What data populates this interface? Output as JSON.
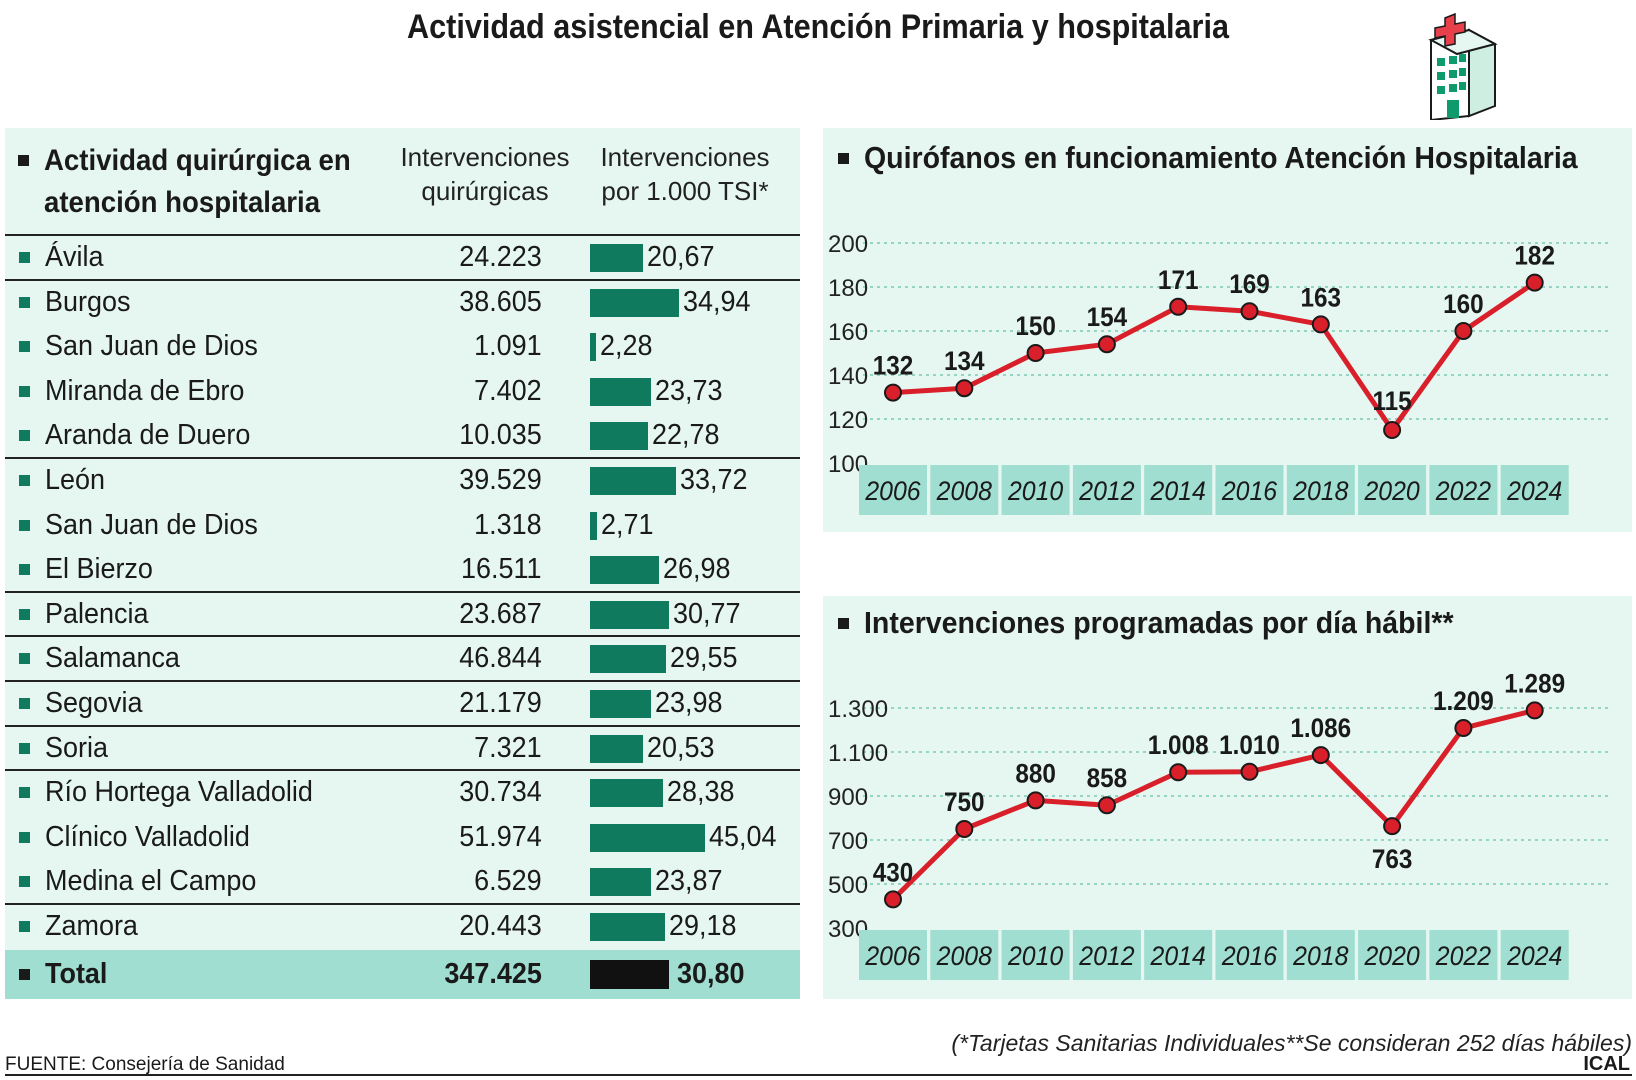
{
  "title": "Actividad asistencial en Atención Primaria y hospitalaria",
  "table": {
    "title_line1": "Actividad quirúrgica en",
    "title_line2": "atención hospitalaria",
    "col1_line1": "Intervenciones",
    "col1_line2": "quirúrgicas",
    "col2_line1": "Intervenciones",
    "col2_line2": "por 1.000 TSI*",
    "rows": [
      {
        "name": "Ávila",
        "interventions": "24.223",
        "per1000": 20.67,
        "per1000_label": "20,67"
      },
      {
        "name": "Burgos",
        "interventions": "38.605",
        "per1000": 34.94,
        "per1000_label": "34,94"
      },
      {
        "name": "San Juan de Dios",
        "interventions": "1.091",
        "per1000": 2.28,
        "per1000_label": "2,28"
      },
      {
        "name": "Miranda de Ebro",
        "interventions": "7.402",
        "per1000": 23.73,
        "per1000_label": "23,73"
      },
      {
        "name": "Aranda de Duero",
        "interventions": "10.035",
        "per1000": 22.78,
        "per1000_label": "22,78"
      },
      {
        "name": "León",
        "interventions": "39.529",
        "per1000": 33.72,
        "per1000_label": "33,72"
      },
      {
        "name": "San Juan de Dios",
        "interventions": "1.318",
        "per1000": 2.71,
        "per1000_label": "2,71"
      },
      {
        "name": "El Bierzo",
        "interventions": "16.511",
        "per1000": 26.98,
        "per1000_label": "26,98"
      },
      {
        "name": "Palencia",
        "interventions": "23.687",
        "per1000": 30.77,
        "per1000_label": "30,77"
      },
      {
        "name": "Salamanca",
        "interventions": "46.844",
        "per1000": 29.55,
        "per1000_label": "29,55"
      },
      {
        "name": "Segovia",
        "interventions": "21.179",
        "per1000": 23.98,
        "per1000_label": "23,98"
      },
      {
        "name": "Soria",
        "interventions": "7.321",
        "per1000": 20.53,
        "per1000_label": "20,53"
      },
      {
        "name": "Río Hortega Valladolid",
        "interventions": "30.734",
        "per1000": 28.38,
        "per1000_label": "28,38"
      },
      {
        "name": "Clínico Valladolid",
        "interventions": "51.974",
        "per1000": 45.04,
        "per1000_label": "45,04"
      },
      {
        "name": "Medina el Campo",
        "interventions": "6.529",
        "per1000": 23.87,
        "per1000_label": "23,87"
      },
      {
        "name": "Zamora",
        "interventions": "20.443",
        "per1000": 29.18,
        "per1000_label": "29,18"
      }
    ],
    "total": {
      "name": "Total",
      "interventions": "347.425",
      "per1000": 30.8,
      "per1000_label": "30,80"
    }
  },
  "chart_data": [
    {
      "type": "line",
      "title": "Quirófanos en funcionamiento Atención Hospitalaria",
      "x": [
        "2006",
        "2008",
        "2010",
        "2012",
        "2014",
        "2016",
        "2018",
        "2020",
        "2022",
        "2024"
      ],
      "values": [
        132,
        134,
        150,
        154,
        171,
        169,
        163,
        115,
        160,
        182
      ],
      "value_labels": [
        "132",
        "134",
        "150",
        "154",
        "171",
        "169",
        "163",
        "115",
        "160",
        "182"
      ],
      "yticks": [
        "100",
        "120",
        "140",
        "160",
        "180",
        "200"
      ],
      "ylim": [
        100,
        200
      ],
      "grid": true
    },
    {
      "type": "line",
      "title": "Intervenciones programadas por día hábil**",
      "x": [
        "2006",
        "2008",
        "2010",
        "2012",
        "2014",
        "2016",
        "2018",
        "2020",
        "2022",
        "2024"
      ],
      "values": [
        430,
        750,
        880,
        858,
        1008,
        1010,
        1086,
        763,
        1209,
        1289
      ],
      "value_labels": [
        "430",
        "750",
        "880",
        "858",
        "1.008",
        "1.010",
        "1.086",
        "763",
        "1.209",
        "1.289"
      ],
      "yticks": [
        "300",
        "500",
        "700",
        "900",
        "1.100",
        "1.300"
      ],
      "ylim": [
        300,
        1300
      ],
      "grid": true
    }
  ],
  "note": "(*Tarjetas Sanitarias Individuales**Se consideran 252 días hábiles)",
  "source": "FUENTE: Consejería de Sanidad",
  "brand": "ICAL",
  "colors": {
    "bar": "#0f7a5e",
    "line": "#d9202a",
    "panel": "#e6f7f2",
    "axis_band": "#9fded0",
    "total_bar": "#111111"
  },
  "icons": [
    "hospital-icon"
  ]
}
